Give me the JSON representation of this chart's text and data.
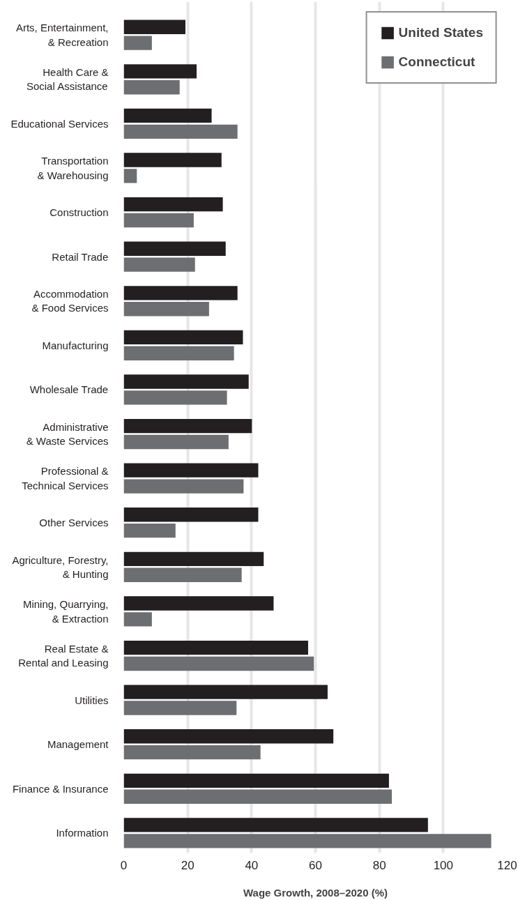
{
  "chart_data": {
    "type": "bar",
    "orientation": "horizontal",
    "categories": [
      "Arts, Entertainment,\n& Recreation",
      "Health Care &\nSocial Assistance",
      "Educational Services",
      "Transportation\n& Warehousing",
      "Construction",
      "Retail Trade",
      "Accommodation\n& Food Services",
      "Manufacturing",
      "Wholesale Trade",
      "Administrative\n& Waste Services",
      "Professional &\nTechnical Services",
      "Other Services",
      "Agriculture, Forestry,\n& Hunting",
      "Mining, Quarrying,\n& Extraction",
      "Real Estate &\nRental and Leasing",
      "Utilities",
      "Management",
      "Finance & Insurance",
      "Information"
    ],
    "series": [
      {
        "name": "United States",
        "color": "#231f20",
        "values": [
          19.3,
          22.8,
          27.5,
          30.6,
          31.0,
          31.9,
          35.6,
          37.3,
          39.1,
          40.1,
          42.1,
          42.1,
          43.8,
          46.9,
          57.7,
          63.8,
          65.6,
          83.0,
          95.2
        ]
      },
      {
        "name": "Connecticut",
        "color": "#6d6e71",
        "values": [
          8.8,
          17.5,
          35.6,
          4.1,
          21.9,
          22.3,
          26.7,
          34.5,
          32.3,
          32.8,
          37.5,
          16.2,
          36.9,
          8.8,
          59.5,
          35.3,
          42.8,
          83.9,
          115.0
        ]
      }
    ],
    "xlabel": "Wage Growth, 2008–2020 (%)",
    "xlim": [
      0,
      120
    ],
    "xticks": [
      0,
      20,
      40,
      60,
      80,
      100,
      120
    ],
    "grid": "x",
    "legend": "top right"
  }
}
